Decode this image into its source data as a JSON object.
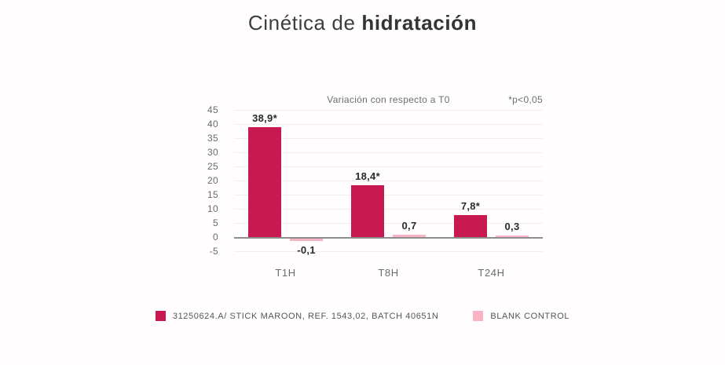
{
  "title": {
    "regular": "Cinética de ",
    "bold": "hidratación"
  },
  "chart_data": {
    "type": "bar",
    "title": "Cinética de hidratación",
    "subtitle": "Variación con respecto a T0",
    "note": "*p<0,05",
    "categories": [
      "T1H",
      "T8H",
      "T24H"
    ],
    "series": [
      {
        "name": "31250624.A/ STICK MAROON, REF. 1543,02, BATCH 40651N",
        "color": "#c81950",
        "values": [
          38.9,
          18.4,
          7.8
        ],
        "labels": [
          "38,9*",
          "18,4*",
          "7,8*"
        ]
      },
      {
        "name": "BLANK CONTROL",
        "color": "#f9b3c4",
        "values": [
          -0.1,
          0.7,
          0.3
        ],
        "labels": [
          "-0,1",
          "0,7",
          "0,3"
        ]
      }
    ],
    "ylim": [
      -5,
      45
    ],
    "ytick_step": 5,
    "grid": true,
    "legend_position": "bottom"
  },
  "colors": {
    "background": "#fffdfd",
    "title_text": "#3d3d3d",
    "axis_text": "#6b6b6b",
    "value_label_text": "#2b2b2b",
    "gridline": "#f1eeee",
    "zero_line": "#8d8d8d",
    "series_maroon": "#c81950",
    "series_pink": "#f9b3c4"
  }
}
